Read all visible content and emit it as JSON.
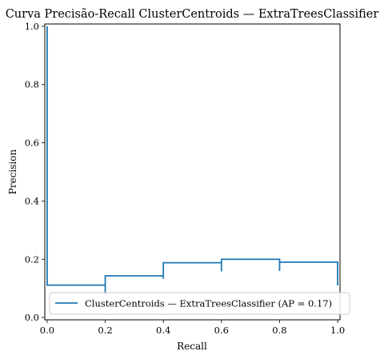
{
  "chart_data": {
    "type": "line",
    "title": "Curva Precisão-Recall ClusterCentroids — ExtraTreesClassifier",
    "xlabel": "Recall",
    "ylabel": "Precision",
    "xlim": [
      -0.008,
      1.008
    ],
    "ylim": [
      -0.008,
      1.008
    ],
    "xticks": [
      {
        "value": 0.0,
        "label": "0.0"
      },
      {
        "value": 0.2,
        "label": "0.2"
      },
      {
        "value": 0.4,
        "label": "0.4"
      },
      {
        "value": 0.6,
        "label": "0.6"
      },
      {
        "value": 0.8,
        "label": "0.8"
      },
      {
        "value": 1.0,
        "label": "1.0"
      }
    ],
    "yticks": [
      {
        "value": 0.0,
        "label": "0.0"
      },
      {
        "value": 0.2,
        "label": "0.2"
      },
      {
        "value": 0.4,
        "label": "0.4"
      },
      {
        "value": 0.6,
        "label": "0.6"
      },
      {
        "value": 0.8,
        "label": "0.8"
      },
      {
        "value": 1.0,
        "label": "1.0"
      }
    ],
    "grid": false,
    "legend_position": "lower-right",
    "series": [
      {
        "name": "ClusterCentroids — ExtraTreesClassifier (AP = 0.17)",
        "color": "#1f77b4",
        "drawstyle": "steps-post",
        "points": [
          {
            "x": 0.0,
            "y": 1.0
          },
          {
            "x": 0.0,
            "y": 0.111
          },
          {
            "x": 0.2,
            "y": 0.111
          },
          {
            "x": 0.2,
            "y": 0.08
          },
          {
            "x": 0.2,
            "y": 0.143
          },
          {
            "x": 0.4,
            "y": 0.143
          },
          {
            "x": 0.4,
            "y": 0.133
          },
          {
            "x": 0.4,
            "y": 0.188
          },
          {
            "x": 0.6,
            "y": 0.188
          },
          {
            "x": 0.6,
            "y": 0.158
          },
          {
            "x": 0.6,
            "y": 0.2
          },
          {
            "x": 0.8,
            "y": 0.2
          },
          {
            "x": 0.8,
            "y": 0.16
          },
          {
            "x": 0.8,
            "y": 0.19
          },
          {
            "x": 1.0,
            "y": 0.19
          },
          {
            "x": 1.0,
            "y": 0.11
          }
        ]
      }
    ]
  }
}
